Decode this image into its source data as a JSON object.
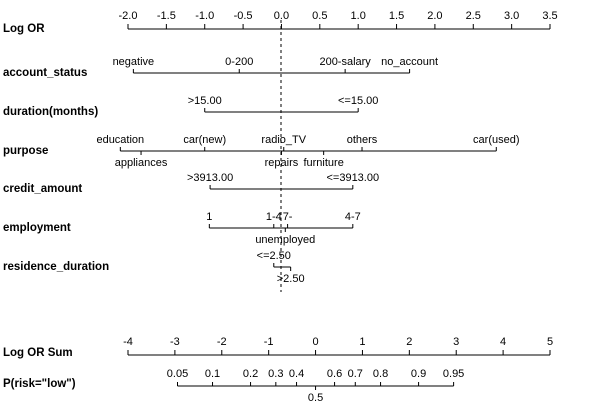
{
  "chart_data": {
    "type": "nomogram",
    "points_axis": {
      "label": "Log OR",
      "xlim": [
        -2,
        3.5
      ],
      "xticks": [
        {
          "value": -2,
          "label": "-2.0"
        },
        -1.5,
        {
          "value": -1,
          "label": "-1.0"
        },
        -0.5,
        {
          "value": 0,
          "label": "0.0"
        },
        0.5,
        {
          "value": 1,
          "label": "1.0"
        },
        1.5,
        {
          "value": 2,
          "label": "2.0"
        },
        2.5,
        {
          "value": 3,
          "label": "3.0"
        },
        3.5
      ]
    },
    "variables": [
      {
        "name": "account_status",
        "levels": [
          "negative",
          "0-200",
          "200-salary",
          "no_account"
        ],
        "values": [
          -1.93,
          -0.55,
          0.83,
          1.67
        ]
      },
      {
        "name": "duration(months)",
        "levels": [
          ">15.00",
          "<=15.00"
        ],
        "values": [
          -1.0,
          1.0
        ]
      },
      {
        "name": "purpose",
        "levels": [
          "education",
          "appliances",
          "car(new)",
          "radio_TV",
          "repairs",
          "furniture",
          "others",
          "car(used)"
        ],
        "values": [
          -2.1,
          -1.83,
          -1.0,
          0.03,
          0.0,
          0.55,
          1.05,
          2.8
        ]
      },
      {
        "name": "credit_amount",
        "levels": [
          ">3913.00",
          "<=3913.00"
        ],
        "values": [
          -0.93,
          0.93
        ]
      },
      {
        "name": "employment",
        "levels": [
          "1",
          "1-4",
          "7-",
          "4-7",
          "unemployed"
        ],
        "values": [
          -0.94,
          -0.1,
          0.08,
          0.93,
          0.05
        ]
      },
      {
        "name": "residence_duration",
        "levels": [
          "<=2.50",
          ">2.50"
        ],
        "values": [
          -0.1,
          0.12
        ]
      }
    ],
    "total_axis": {
      "label": "Log OR Sum",
      "xlim": [
        -4,
        5
      ],
      "xticks": [
        -4,
        -3,
        -2,
        -1,
        0,
        1,
        2,
        3,
        4,
        5
      ]
    },
    "probability_axis": {
      "label": "P(risk=\"low\")",
      "ticks": [
        0.05,
        0.1,
        0.2,
        0.3,
        0.4,
        0.5,
        0.6,
        0.7,
        0.8,
        0.9,
        0.95
      ]
    }
  }
}
